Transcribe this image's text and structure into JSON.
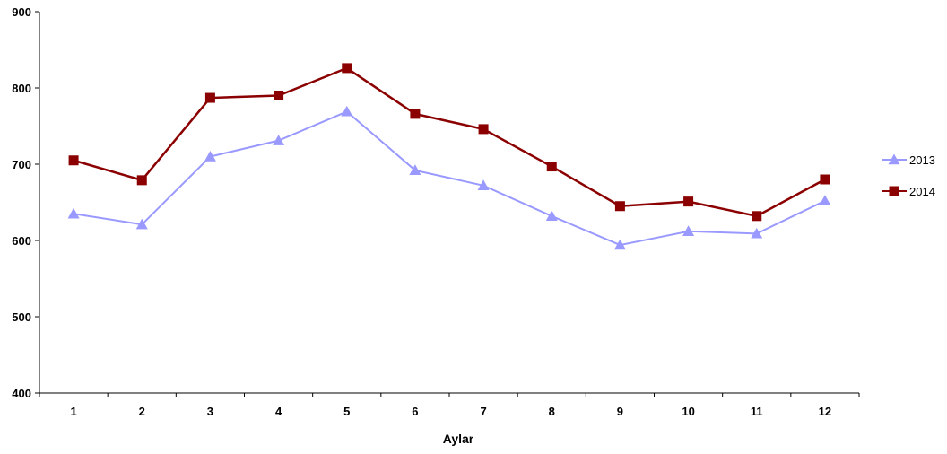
{
  "chart_data": {
    "type": "line",
    "xlabel": "Aylar",
    "ylabel": "",
    "categories": [
      "1",
      "2",
      "3",
      "4",
      "5",
      "6",
      "7",
      "8",
      "9",
      "10",
      "11",
      "12"
    ],
    "ylim": [
      400,
      900
    ],
    "yticks": [
      400,
      500,
      600,
      700,
      800,
      900
    ],
    "grid": false,
    "legend_position": "right",
    "series": [
      {
        "name": "2013",
        "color": "#9999ff",
        "marker": "triangle",
        "values": [
          635,
          621,
          710,
          731,
          769,
          692,
          672,
          632,
          594,
          612,
          609,
          652
        ]
      },
      {
        "name": "2014",
        "color": "#8b0000",
        "marker": "square",
        "values": [
          705,
          679,
          787,
          790,
          826,
          766,
          746,
          697,
          645,
          651,
          632,
          680
        ]
      }
    ]
  }
}
